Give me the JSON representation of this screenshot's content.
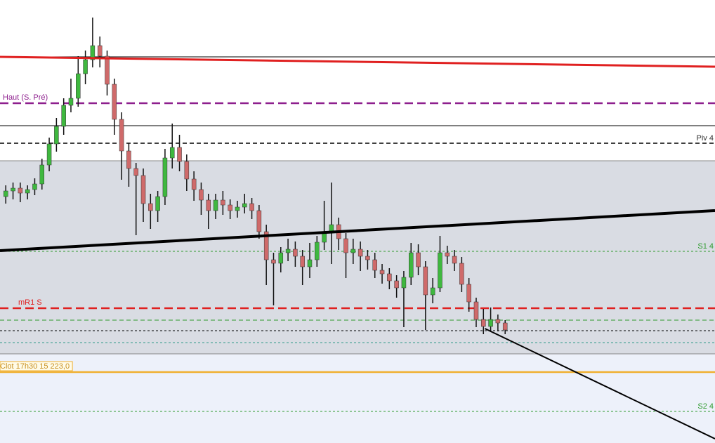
{
  "chart_data": {
    "type": "candlestick",
    "xlim": [
      -0.8,
      98
    ],
    "ylim": [
      15172.5,
      15488
    ],
    "up_color": "#3fb83f",
    "down_color": "#cf6a6a",
    "zones": [
      {
        "from": 15236,
        "to": 15373.5,
        "color": "#d9dce3"
      }
    ],
    "lower_fill": "#edf1fa",
    "open": [
      15348,
      15352,
      15354,
      15350.5,
      15353,
      15357,
      15370.5,
      15385.5,
      15398,
      15413,
      15418,
      15435.5,
      15445.5,
      15455.5,
      15448,
      15428,
      15403,
      15380.5,
      15368,
      15363,
      15343,
      15338,
      15348,
      15375.5,
      15383,
      15373,
      15360.5,
      15353,
      15345.5,
      15338,
      15345.5,
      15342,
      15338,
      15340.5,
      15343,
      15338,
      15323,
      15303,
      15300.5,
      15308,
      15310.5,
      15305.5,
      15298,
      15303,
      15315.5,
      15323,
      15328,
      15318,
      15308,
      15310.5,
      15305.5,
      15303,
      15295.5,
      15293,
      15288,
      15283,
      15290.5,
      15308,
      15298,
      15278,
      15283,
      15308,
      15305.5,
      15300.5,
      15285.5,
      15273,
      15260.5,
      15255.5,
      15260.5,
      15258
    ],
    "high": [
      15356,
      15358,
      15358,
      15356,
      15361,
      15375,
      15390,
      15404,
      15418,
      15432,
      15448,
      15452,
      15475.5,
      15462,
      15452,
      15432,
      15408,
      15386,
      15372,
      15368,
      15350,
      15352,
      15382,
      15400,
      15392,
      15378,
      15366,
      15358,
      15350,
      15350,
      15352,
      15346,
      15345,
      15350,
      15347,
      15342,
      15328,
      15308,
      15312,
      15318,
      15316,
      15310,
      15315,
      15320,
      15345,
      15358,
      15333,
      15322,
      15318,
      15316,
      15310,
      15308,
      15300,
      15297,
      15292,
      15295,
      15315,
      15314,
      15302,
      15290,
      15320,
      15313,
      15310,
      15305,
      15290,
      15276,
      15268,
      15269,
      15264,
      15260
    ],
    "low": [
      15343,
      15346,
      15344,
      15346,
      15349,
      15353,
      15366,
      15380,
      15392,
      15408,
      15412,
      15428,
      15440,
      15440,
      15420,
      15392,
      15360,
      15355,
      15320.5,
      15330,
      15325,
      15330,
      15342,
      15368,
      15366,
      15352,
      15345,
      15335,
      15325,
      15332,
      15335,
      15332,
      15333,
      15336,
      15332,
      15318,
      15285,
      15270.5,
      15294,
      15302,
      15298,
      15285,
      15290,
      15298,
      15310,
      15300,
      15310,
      15290,
      15300,
      15295,
      15296,
      15290,
      15286,
      15282,
      15276,
      15255,
      15285,
      15292,
      15253,
      15272,
      15280,
      15300,
      15295,
      15280,
      15266,
      15255,
      15250,
      15252,
      15252,
      15250
    ],
    "close": [
      15352,
      15354,
      15350.5,
      15353,
      15357,
      15370.5,
      15385.5,
      15398,
      15413,
      15418,
      15435.5,
      15445.5,
      15455.5,
      15448,
      15428,
      15403,
      15380.5,
      15368,
      15363,
      15343,
      15338,
      15348,
      15375.5,
      15383,
      15373,
      15360.5,
      15353,
      15345.5,
      15338,
      15345.5,
      15342,
      15338,
      15340.5,
      15343,
      15338,
      15323,
      15303,
      15300.5,
      15308,
      15310.5,
      15305.5,
      15298,
      15303,
      15315.5,
      15323,
      15328,
      15318,
      15308,
      15310.5,
      15305.5,
      15303,
      15295.5,
      15293,
      15288,
      15283,
      15290.5,
      15308,
      15298,
      15278,
      15283,
      15308,
      15305.5,
      15300.5,
      15285.5,
      15273,
      15260.5,
      15255.5,
      15260.5,
      15258,
      15253
    ],
    "levels": [
      {
        "value": 15447.5,
        "color": "#000000",
        "style": "solid",
        "width": 1
      },
      {
        "value": 15414.5,
        "color": "#8e1f8e",
        "style": "dashed",
        "width": 2.5,
        "label": "Haut (S. Pré)",
        "label_side": "left"
      },
      {
        "value": 15398.5,
        "color": "#000000",
        "style": "solid",
        "width": 1
      },
      {
        "value": 15386,
        "color": "#000000",
        "style": "dashed",
        "width": 1.5,
        "label": "Piv 4",
        "label_side": "right"
      },
      {
        "value": 15373.5,
        "color": "#888888",
        "style": "solid",
        "width": 1
      },
      {
        "value": 15309,
        "color": "#2e9a2e",
        "style": "dotted",
        "width": 1,
        "label": "S1 4",
        "label_side": "right"
      },
      {
        "value": 15268.5,
        "color": "#e02020",
        "style": "dashed",
        "width": 2.5,
        "label": "mR1 S",
        "label_side": "left"
      },
      {
        "value": 15260,
        "color": "#2e9a2e",
        "style": "dashed",
        "width": 1
      },
      {
        "value": 15252.5,
        "color": "#000000",
        "style": "dotted",
        "width": 1
      },
      {
        "value": 15244,
        "color": "#2e9a8a",
        "style": "dotted",
        "width": 1
      },
      {
        "value": 15236,
        "color": "#888888",
        "style": "solid",
        "width": 1
      },
      {
        "value": 15223,
        "color": "#f0b030",
        "style": "solid",
        "width": 2.5,
        "label": "Clot 17h30 15 223,0",
        "label_side": "left",
        "boxed": true
      },
      {
        "value": 15195,
        "color": "#2e9a2e",
        "style": "dotted",
        "width": 1,
        "label": "S2 4",
        "label_side": "right"
      }
    ],
    "trendlines": [
      {
        "x": [
          -0.8,
          98
        ],
        "y": [
          15447.5,
          15440.5
        ],
        "color": "#e02020",
        "width": 3
      },
      {
        "x": [
          -0.8,
          98
        ],
        "y": [
          15309.5,
          15338
        ],
        "color": "#000000",
        "width": 4
      },
      {
        "x": [
          66.2,
          98
        ],
        "y": [
          15254,
          15175.5
        ],
        "color": "#000000",
        "width": 2
      }
    ]
  }
}
